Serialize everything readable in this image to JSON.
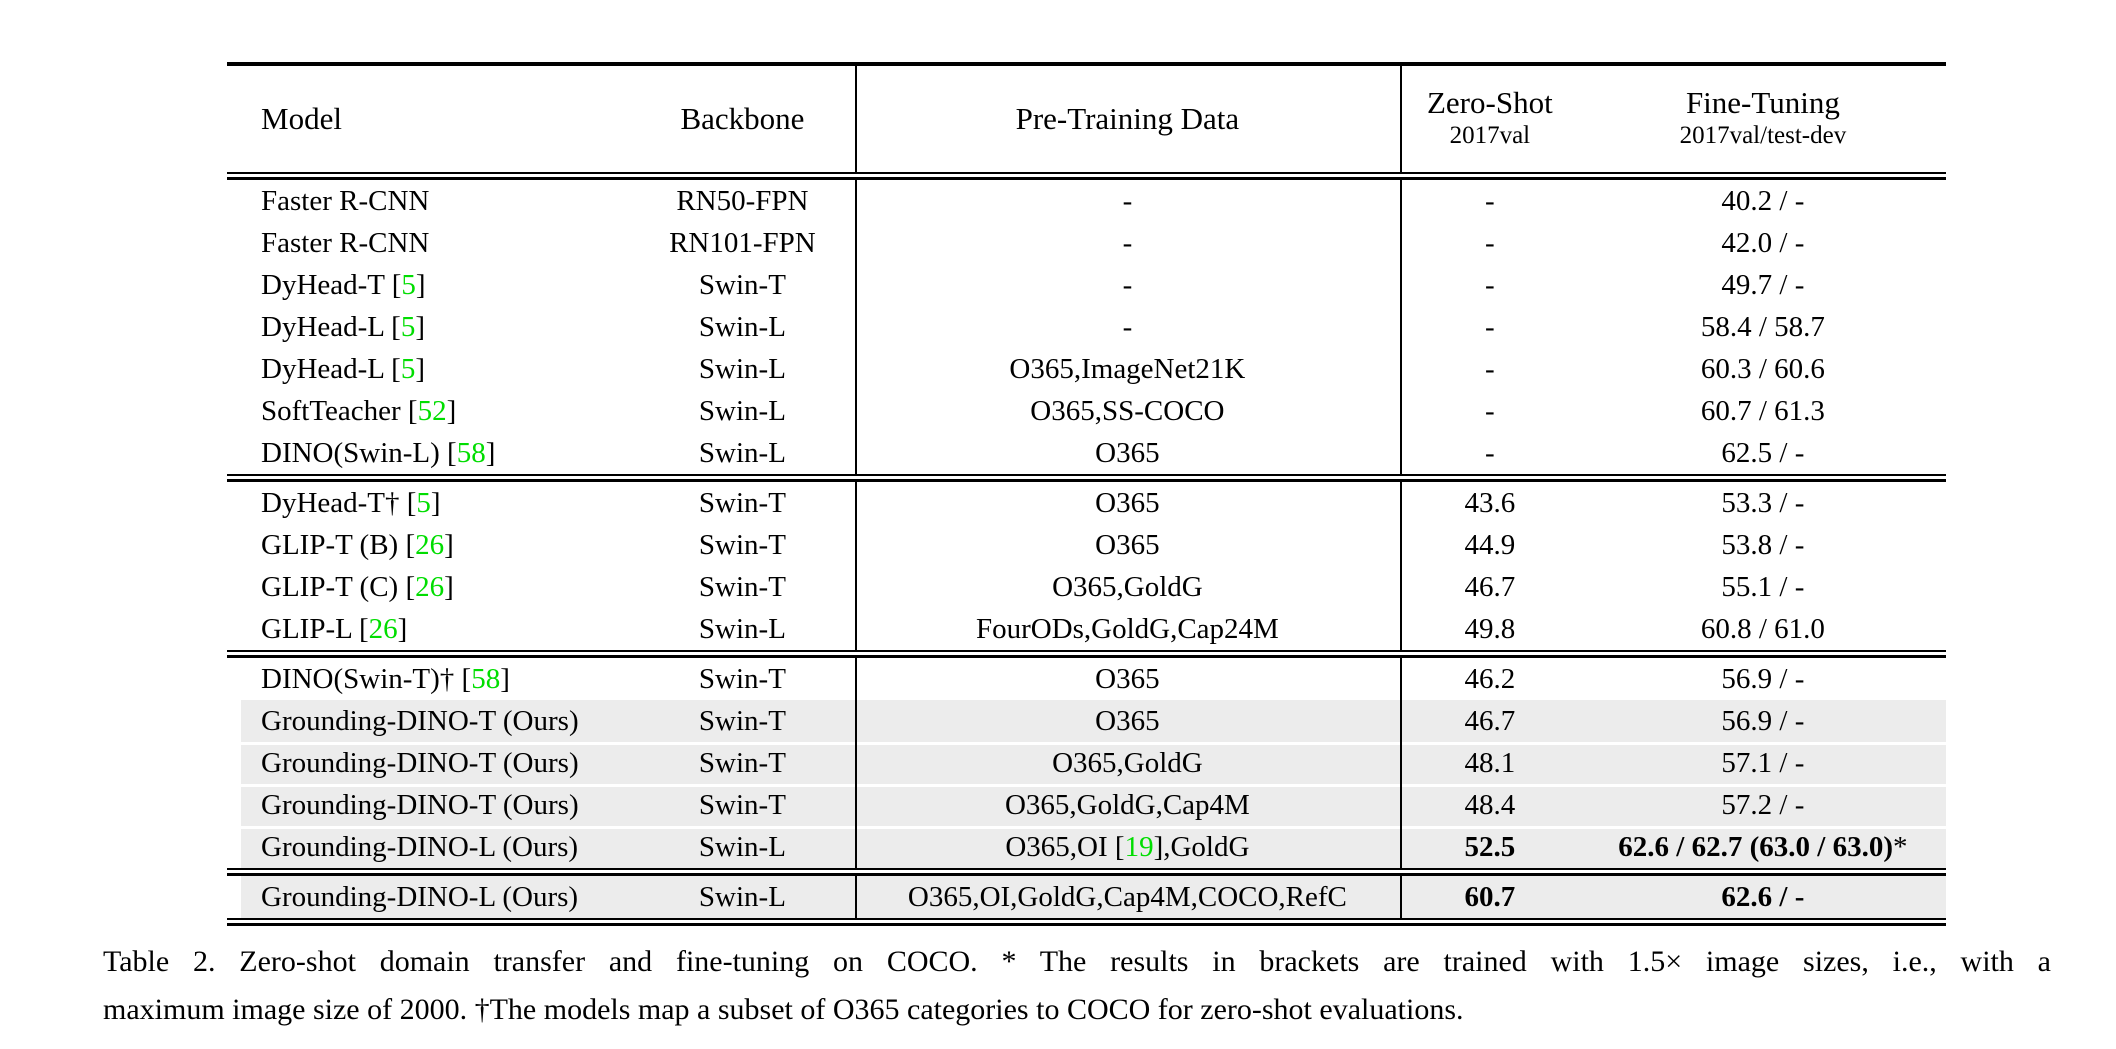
{
  "table": {
    "columns": [
      {
        "label": "Model",
        "sub": ""
      },
      {
        "label": "Backbone",
        "sub": ""
      },
      {
        "label": "Pre-Training Data",
        "sub": ""
      },
      {
        "label": "Zero-Shot",
        "sub": "2017val"
      },
      {
        "label": "Fine-Tuning",
        "sub": "2017val/test-dev"
      }
    ],
    "sections": [
      {
        "rows": [
          {
            "model": [
              {
                "t": "Faster R-CNN"
              }
            ],
            "backbone": "RN50-FPN",
            "pretrain": [
              {
                "t": "-"
              }
            ],
            "zeroshot": [
              {
                "t": "-"
              }
            ],
            "finetune": [
              {
                "t": "40.2 / -"
              }
            ],
            "hl": false
          },
          {
            "model": [
              {
                "t": "Faster R-CNN"
              }
            ],
            "backbone": "RN101-FPN",
            "pretrain": [
              {
                "t": "-"
              }
            ],
            "zeroshot": [
              {
                "t": "-"
              }
            ],
            "finetune": [
              {
                "t": "42.0 / -"
              }
            ],
            "hl": false
          },
          {
            "model": [
              {
                "t": "DyHead-T ["
              },
              {
                "t": "5",
                "g": true
              },
              {
                "t": "]"
              }
            ],
            "backbone": "Swin-T",
            "pretrain": [
              {
                "t": "-"
              }
            ],
            "zeroshot": [
              {
                "t": "-"
              }
            ],
            "finetune": [
              {
                "t": "49.7 / -"
              }
            ],
            "hl": false
          },
          {
            "model": [
              {
                "t": "DyHead-L ["
              },
              {
                "t": "5",
                "g": true
              },
              {
                "t": "]"
              }
            ],
            "backbone": "Swin-L",
            "pretrain": [
              {
                "t": "-"
              }
            ],
            "zeroshot": [
              {
                "t": "-"
              }
            ],
            "finetune": [
              {
                "t": "58.4 / 58.7"
              }
            ],
            "hl": false
          },
          {
            "model": [
              {
                "t": "DyHead-L ["
              },
              {
                "t": "5",
                "g": true
              },
              {
                "t": "]"
              }
            ],
            "backbone": "Swin-L",
            "pretrain": [
              {
                "t": "O365,ImageNet21K"
              }
            ],
            "zeroshot": [
              {
                "t": "-"
              }
            ],
            "finetune": [
              {
                "t": "60.3 / 60.6"
              }
            ],
            "hl": false
          },
          {
            "model": [
              {
                "t": "SoftTeacher ["
              },
              {
                "t": "52",
                "g": true
              },
              {
                "t": "]"
              }
            ],
            "backbone": "Swin-L",
            "pretrain": [
              {
                "t": "O365,SS-COCO"
              }
            ],
            "zeroshot": [
              {
                "t": "-"
              }
            ],
            "finetune": [
              {
                "t": "60.7 / 61.3"
              }
            ],
            "hl": false
          },
          {
            "model": [
              {
                "t": "DINO(Swin-L) ["
              },
              {
                "t": "58",
                "g": true
              },
              {
                "t": "]"
              }
            ],
            "backbone": "Swin-L",
            "pretrain": [
              {
                "t": "O365"
              }
            ],
            "zeroshot": [
              {
                "t": "-"
              }
            ],
            "finetune": [
              {
                "t": "62.5 / -"
              }
            ],
            "hl": false
          }
        ]
      },
      {
        "rows": [
          {
            "model": [
              {
                "t": "DyHead-T† ["
              },
              {
                "t": "5",
                "g": true
              },
              {
                "t": "]"
              }
            ],
            "backbone": "Swin-T",
            "pretrain": [
              {
                "t": "O365"
              }
            ],
            "zeroshot": [
              {
                "t": "43.6"
              }
            ],
            "finetune": [
              {
                "t": "53.3 / -"
              }
            ],
            "hl": false
          },
          {
            "model": [
              {
                "t": "GLIP-T (B) ["
              },
              {
                "t": "26",
                "g": true
              },
              {
                "t": "]"
              }
            ],
            "backbone": "Swin-T",
            "pretrain": [
              {
                "t": "O365"
              }
            ],
            "zeroshot": [
              {
                "t": "44.9"
              }
            ],
            "finetune": [
              {
                "t": "53.8 / -"
              }
            ],
            "hl": false
          },
          {
            "model": [
              {
                "t": "GLIP-T (C) ["
              },
              {
                "t": "26",
                "g": true
              },
              {
                "t": "]"
              }
            ],
            "backbone": "Swin-T",
            "pretrain": [
              {
                "t": "O365,GoldG"
              }
            ],
            "zeroshot": [
              {
                "t": "46.7"
              }
            ],
            "finetune": [
              {
                "t": "55.1 / -"
              }
            ],
            "hl": false
          },
          {
            "model": [
              {
                "t": "GLIP-L ["
              },
              {
                "t": "26",
                "g": true
              },
              {
                "t": "]"
              }
            ],
            "backbone": "Swin-L",
            "pretrain": [
              {
                "t": "FourODs,GoldG,Cap24M"
              }
            ],
            "zeroshot": [
              {
                "t": "49.8"
              }
            ],
            "finetune": [
              {
                "t": "60.8 / 61.0"
              }
            ],
            "hl": false
          }
        ]
      },
      {
        "rows": [
          {
            "model": [
              {
                "t": "DINO(Swin-T)† ["
              },
              {
                "t": "58",
                "g": true
              },
              {
                "t": "]"
              }
            ],
            "backbone": "Swin-T",
            "pretrain": [
              {
                "t": "O365"
              }
            ],
            "zeroshot": [
              {
                "t": "46.2"
              }
            ],
            "finetune": [
              {
                "t": "56.9 / -"
              }
            ],
            "hl": false
          },
          {
            "model": [
              {
                "t": "Grounding-DINO-T (Ours)"
              }
            ],
            "backbone": "Swin-T",
            "pretrain": [
              {
                "t": "O365"
              }
            ],
            "zeroshot": [
              {
                "t": "46.7"
              }
            ],
            "finetune": [
              {
                "t": "56.9 / -"
              }
            ],
            "hl": true
          },
          {
            "model": [
              {
                "t": "Grounding-DINO-T (Ours)"
              }
            ],
            "backbone": "Swin-T",
            "pretrain": [
              {
                "t": "O365,GoldG"
              }
            ],
            "zeroshot": [
              {
                "t": "48.1"
              }
            ],
            "finetune": [
              {
                "t": "57.1 / -"
              }
            ],
            "hl": true
          },
          {
            "model": [
              {
                "t": "Grounding-DINO-T (Ours)"
              }
            ],
            "backbone": "Swin-T",
            "pretrain": [
              {
                "t": "O365,GoldG,Cap4M"
              }
            ],
            "zeroshot": [
              {
                "t": "48.4"
              }
            ],
            "finetune": [
              {
                "t": "57.2 / -"
              }
            ],
            "hl": true
          },
          {
            "model": [
              {
                "t": "Grounding-DINO-L (Ours)"
              }
            ],
            "backbone": "Swin-L",
            "pretrain": [
              {
                "t": "O365,OI ["
              },
              {
                "t": "19",
                "g": true
              },
              {
                "t": "],GoldG"
              }
            ],
            "zeroshot": [
              {
                "t": "52.5",
                "b": true
              }
            ],
            "finetune": [
              {
                "t": "62.6 / 62.7 (63.0 / 63.0)",
                "b": true
              },
              {
                "t": "*"
              }
            ],
            "hl": true
          }
        ]
      },
      {
        "rows": [
          {
            "model": [
              {
                "t": "Grounding-DINO-L (Ours)"
              }
            ],
            "backbone": "Swin-L",
            "pretrain": [
              {
                "t": "O365,OI,GoldG,Cap4M,COCO,RefC"
              }
            ],
            "zeroshot": [
              {
                "t": "60.7",
                "b": true
              }
            ],
            "finetune": [
              {
                "t": "62.6 / -",
                "b": true
              }
            ],
            "hl": true
          }
        ]
      }
    ]
  },
  "caption": {
    "line1": "Table 2.  Zero-shot domain transfer and fine-tuning on COCO. * The results in brackets are trained with 1.5× image sizes, i.e., with a",
    "line2": "maximum image size of 2000. †The models map a subset of O365 categories to COCO for zero-shot evaluations."
  },
  "colors": {
    "citation_green": "#00DD00",
    "highlight_gray": "#ececec"
  }
}
